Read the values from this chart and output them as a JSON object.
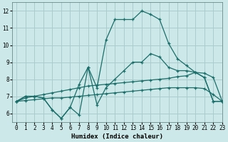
{
  "xlabel": "Humidex (Indice chaleur)",
  "background_color": "#cce8e8",
  "grid_color": "#aacccc",
  "line_color": "#1a6e6a",
  "xlim": [
    -0.5,
    23
  ],
  "ylim": [
    5.5,
    12.5
  ],
  "xticks": [
    0,
    1,
    2,
    3,
    4,
    5,
    6,
    7,
    8,
    9,
    10,
    11,
    12,
    13,
    14,
    15,
    16,
    17,
    18,
    19,
    20,
    21,
    22,
    23
  ],
  "yticks": [
    6,
    7,
    8,
    9,
    10,
    11,
    12
  ],
  "line_peak_x": [
    0,
    1,
    2,
    3,
    4,
    5,
    6,
    7,
    8,
    9,
    10,
    11,
    12,
    13,
    14,
    15,
    16,
    17,
    18,
    19,
    20,
    21,
    22,
    23
  ],
  "line_peak_y": [
    6.7,
    7.0,
    7.0,
    6.9,
    6.2,
    5.7,
    6.35,
    7.7,
    8.7,
    7.5,
    10.3,
    11.5,
    11.5,
    11.5,
    12.0,
    11.8,
    11.5,
    10.1,
    9.2,
    8.8,
    8.4,
    8.1,
    6.7,
    6.7
  ],
  "line_spike_x": [
    0,
    1,
    2,
    3,
    4,
    5,
    6,
    7,
    8,
    9,
    10,
    11,
    12,
    13,
    14,
    15,
    16,
    17,
    18,
    19,
    20,
    21,
    22,
    23
  ],
  "line_spike_y": [
    6.7,
    7.0,
    7.0,
    6.9,
    6.2,
    5.7,
    6.35,
    5.9,
    8.7,
    6.5,
    7.5,
    8.0,
    8.5,
    9.0,
    9.0,
    9.5,
    9.3,
    8.7,
    8.5,
    8.5,
    8.4,
    8.1,
    6.7,
    6.7
  ],
  "line_upper_x": [
    0,
    1,
    2,
    3,
    4,
    5,
    6,
    7,
    8,
    9,
    10,
    11,
    12,
    13,
    14,
    15,
    16,
    17,
    18,
    19,
    20,
    21,
    22,
    23
  ],
  "line_upper_y": [
    6.7,
    6.9,
    7.0,
    7.1,
    7.2,
    7.3,
    7.4,
    7.5,
    7.6,
    7.65,
    7.7,
    7.75,
    7.8,
    7.85,
    7.9,
    7.95,
    8.0,
    8.05,
    8.15,
    8.2,
    8.4,
    8.35,
    8.1,
    6.7
  ],
  "line_lower_x": [
    0,
    1,
    2,
    3,
    4,
    5,
    6,
    7,
    8,
    9,
    10,
    11,
    12,
    13,
    14,
    15,
    16,
    17,
    18,
    19,
    20,
    21,
    22,
    23
  ],
  "line_lower_y": [
    6.7,
    6.75,
    6.8,
    6.85,
    6.9,
    6.9,
    6.95,
    7.0,
    7.05,
    7.1,
    7.15,
    7.2,
    7.25,
    7.3,
    7.35,
    7.4,
    7.45,
    7.5,
    7.5,
    7.5,
    7.5,
    7.45,
    7.1,
    6.7
  ]
}
